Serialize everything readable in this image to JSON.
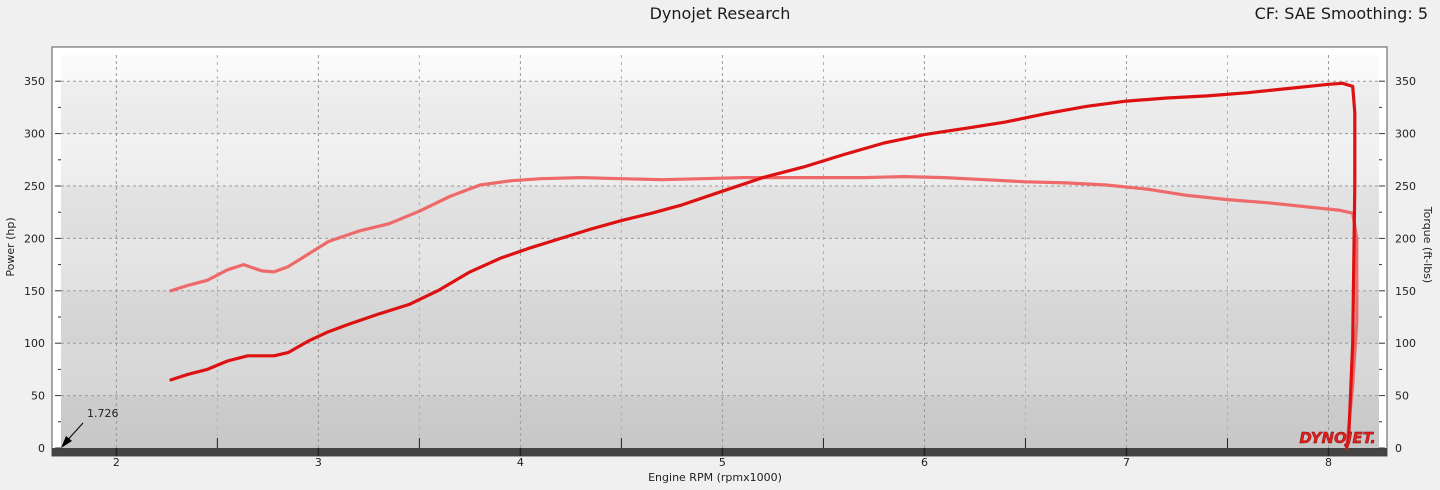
{
  "header": {
    "title": "Dynojet Research",
    "info": "CF: SAE Smoothing: 5"
  },
  "logo_text": "DYNOJET.",
  "chart_data": {
    "type": "line",
    "xlabel": "Engine RPM (rpmx1000)",
    "ylabel_left": "Power (hp)",
    "ylabel_right": "Torque (ft-lbs)",
    "xlim": [
      1.726,
      8.25
    ],
    "ylim": [
      0,
      375
    ],
    "x_ticks": [
      2,
      3,
      4,
      5,
      6,
      7,
      8
    ],
    "y_ticks": [
      0,
      50,
      100,
      150,
      200,
      250,
      300,
      350
    ],
    "cursor_annotation": "1.726",
    "grid": true,
    "series": [
      {
        "axis": "left",
        "color": "#dd1111",
        "points": [
          [
            2.27,
            65
          ],
          [
            2.35,
            70
          ],
          [
            2.45,
            75
          ],
          [
            2.55,
            83
          ],
          [
            2.65,
            88
          ],
          [
            2.78,
            88
          ],
          [
            2.85,
            91
          ],
          [
            2.95,
            102
          ],
          [
            3.05,
            111
          ],
          [
            3.15,
            118
          ],
          [
            3.3,
            128
          ],
          [
            3.45,
            137
          ],
          [
            3.6,
            151
          ],
          [
            3.75,
            168
          ],
          [
            3.9,
            181
          ],
          [
            4.05,
            191
          ],
          [
            4.2,
            200
          ],
          [
            4.35,
            209
          ],
          [
            4.5,
            217
          ],
          [
            4.65,
            224
          ],
          [
            4.8,
            232
          ],
          [
            5.0,
            245
          ],
          [
            5.2,
            258
          ],
          [
            5.4,
            268
          ],
          [
            5.6,
            280
          ],
          [
            5.8,
            291
          ],
          [
            6.0,
            299
          ],
          [
            6.2,
            305
          ],
          [
            6.4,
            311
          ],
          [
            6.6,
            319
          ],
          [
            6.8,
            326
          ],
          [
            7.0,
            331
          ],
          [
            7.2,
            334
          ],
          [
            7.4,
            336
          ],
          [
            7.6,
            339
          ],
          [
            7.8,
            343
          ],
          [
            8.0,
            347
          ],
          [
            8.07,
            348
          ],
          [
            8.12,
            345
          ],
          [
            8.13,
            320
          ],
          [
            8.13,
            250
          ],
          [
            8.12,
            100
          ],
          [
            8.1,
            10
          ],
          [
            8.09,
            0
          ]
        ]
      },
      {
        "axis": "right",
        "color": "#ee6a6a",
        "points": [
          [
            2.27,
            150
          ],
          [
            2.35,
            155
          ],
          [
            2.45,
            160
          ],
          [
            2.55,
            170
          ],
          [
            2.63,
            175
          ],
          [
            2.72,
            169
          ],
          [
            2.78,
            168
          ],
          [
            2.85,
            173
          ],
          [
            2.95,
            185
          ],
          [
            3.05,
            197
          ],
          [
            3.2,
            207
          ],
          [
            3.35,
            214
          ],
          [
            3.5,
            226
          ],
          [
            3.65,
            240
          ],
          [
            3.8,
            251
          ],
          [
            3.95,
            255
          ],
          [
            4.1,
            257
          ],
          [
            4.3,
            258
          ],
          [
            4.5,
            257
          ],
          [
            4.7,
            256
          ],
          [
            4.9,
            257
          ],
          [
            5.1,
            258
          ],
          [
            5.3,
            258
          ],
          [
            5.5,
            258
          ],
          [
            5.7,
            258
          ],
          [
            5.9,
            259
          ],
          [
            6.1,
            258
          ],
          [
            6.3,
            256
          ],
          [
            6.5,
            254
          ],
          [
            6.7,
            253
          ],
          [
            6.9,
            251
          ],
          [
            7.1,
            247
          ],
          [
            7.3,
            241
          ],
          [
            7.5,
            237
          ],
          [
            7.7,
            234
          ],
          [
            7.9,
            230
          ],
          [
            8.05,
            227
          ],
          [
            8.12,
            224
          ],
          [
            8.14,
            200
          ],
          [
            8.14,
            120
          ],
          [
            8.12,
            60
          ],
          [
            8.1,
            20
          ],
          [
            8.09,
            0
          ]
        ]
      }
    ]
  }
}
